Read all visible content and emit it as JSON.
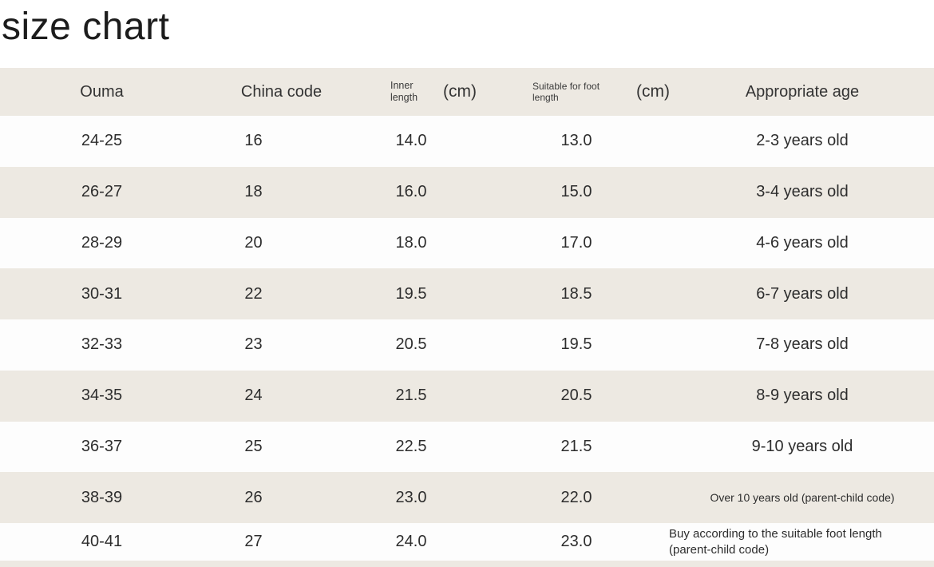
{
  "page_title": "size chart",
  "colors": {
    "row_beige": "#EDE9E2",
    "row_white": "#FDFDFD",
    "text": "#2D2D2D",
    "title_text": "#1C1C1C"
  },
  "header": {
    "col1": "Ouma",
    "col2": "China code",
    "col3_small": "Inner length",
    "col3_unit": "(cm)",
    "col4_small": "Suitable for foot length",
    "col4_unit": "(cm)",
    "col5": "Appropriate age"
  },
  "chart_data": {
    "type": "table",
    "title": "size chart",
    "columns": [
      "Ouma",
      "China code",
      "Inner length (cm)",
      "Suitable for foot length (cm)",
      "Appropriate age"
    ],
    "rows": [
      [
        "24-25",
        "16",
        "14.0",
        "13.0",
        "2-3 years old"
      ],
      [
        "26-27",
        "18",
        "16.0",
        "15.0",
        "3-4 years old"
      ],
      [
        "28-29",
        "20",
        "18.0",
        "17.0",
        "4-6 years old"
      ],
      [
        "30-31",
        "22",
        "19.5",
        "18.5",
        "6-7 years old"
      ],
      [
        "32-33",
        "23",
        "20.5",
        "19.5",
        "7-8 years old"
      ],
      [
        "34-35",
        "24",
        "21.5",
        "20.5",
        "8-9 years old"
      ],
      [
        "36-37",
        "25",
        "22.5",
        "21.5",
        "9-10 years old"
      ],
      [
        "38-39",
        "26",
        "23.0",
        "22.0",
        "Over 10 years old (parent-child code)"
      ],
      [
        "40-41",
        "27",
        "24.0",
        "23.0",
        "Buy according to the suitable foot length (parent-child code)"
      ]
    ]
  }
}
